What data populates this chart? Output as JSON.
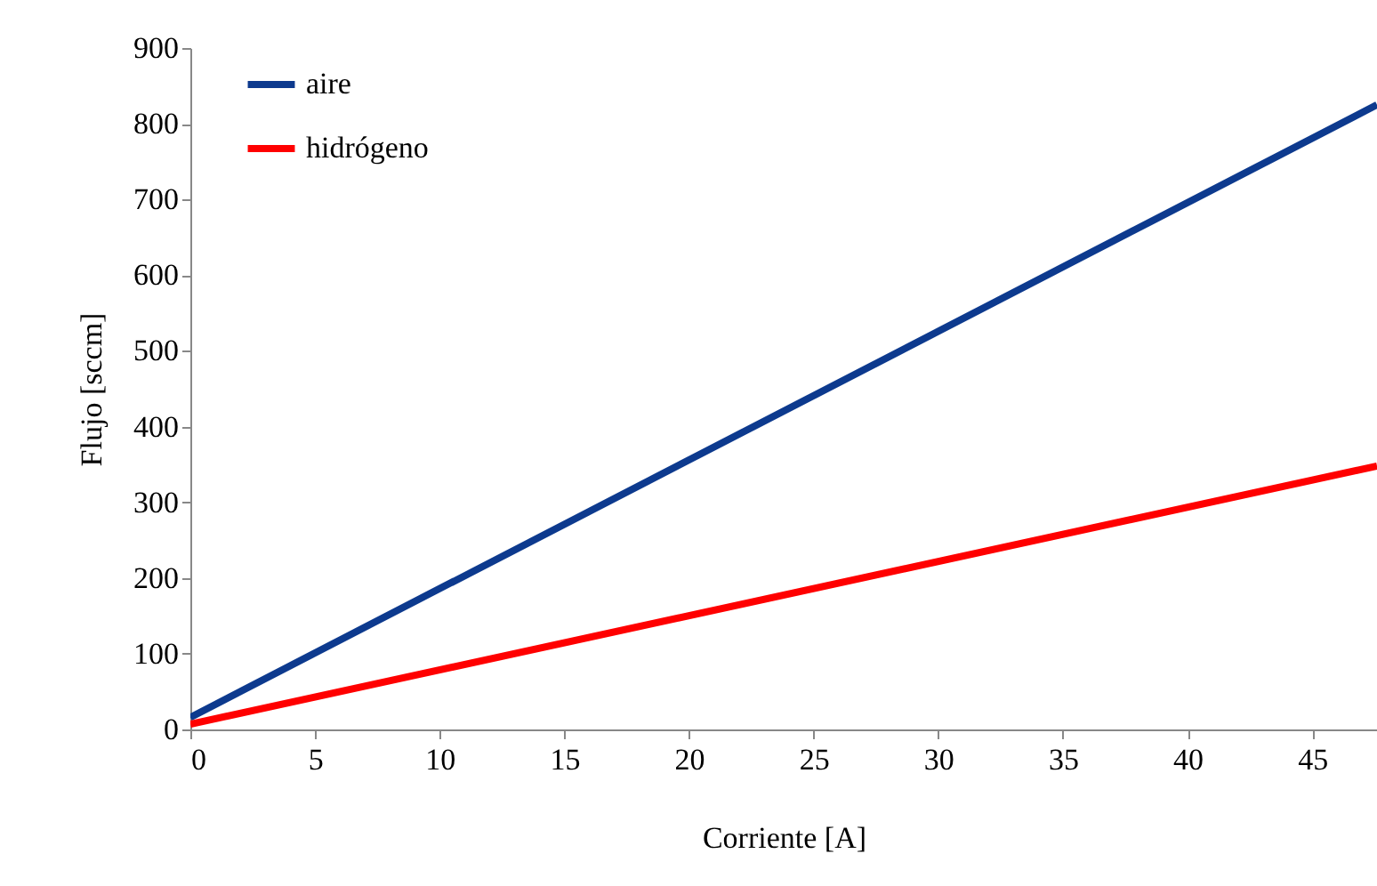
{
  "chart_data": {
    "type": "line",
    "xlabel": "Corriente [A]",
    "ylabel": "Flujo [sccm]",
    "x": [
      0,
      47.6
    ],
    "xlim": [
      0,
      47.6
    ],
    "xticks": [
      0,
      5,
      10,
      15,
      20,
      25,
      30,
      35,
      40,
      45
    ],
    "ylim": [
      0,
      900
    ],
    "yticks": [
      0,
      100,
      200,
      300,
      400,
      500,
      600,
      700,
      800,
      900
    ],
    "grid": false,
    "legend": "top left",
    "marker": "none",
    "line_style": "solid",
    "series": [
      {
        "name": "aire",
        "color": "#0d3a8e",
        "values": [
          16,
          825
        ]
      },
      {
        "name": "hidrógeno",
        "color": "#ff0000",
        "values": [
          7,
          348
        ]
      }
    ]
  }
}
